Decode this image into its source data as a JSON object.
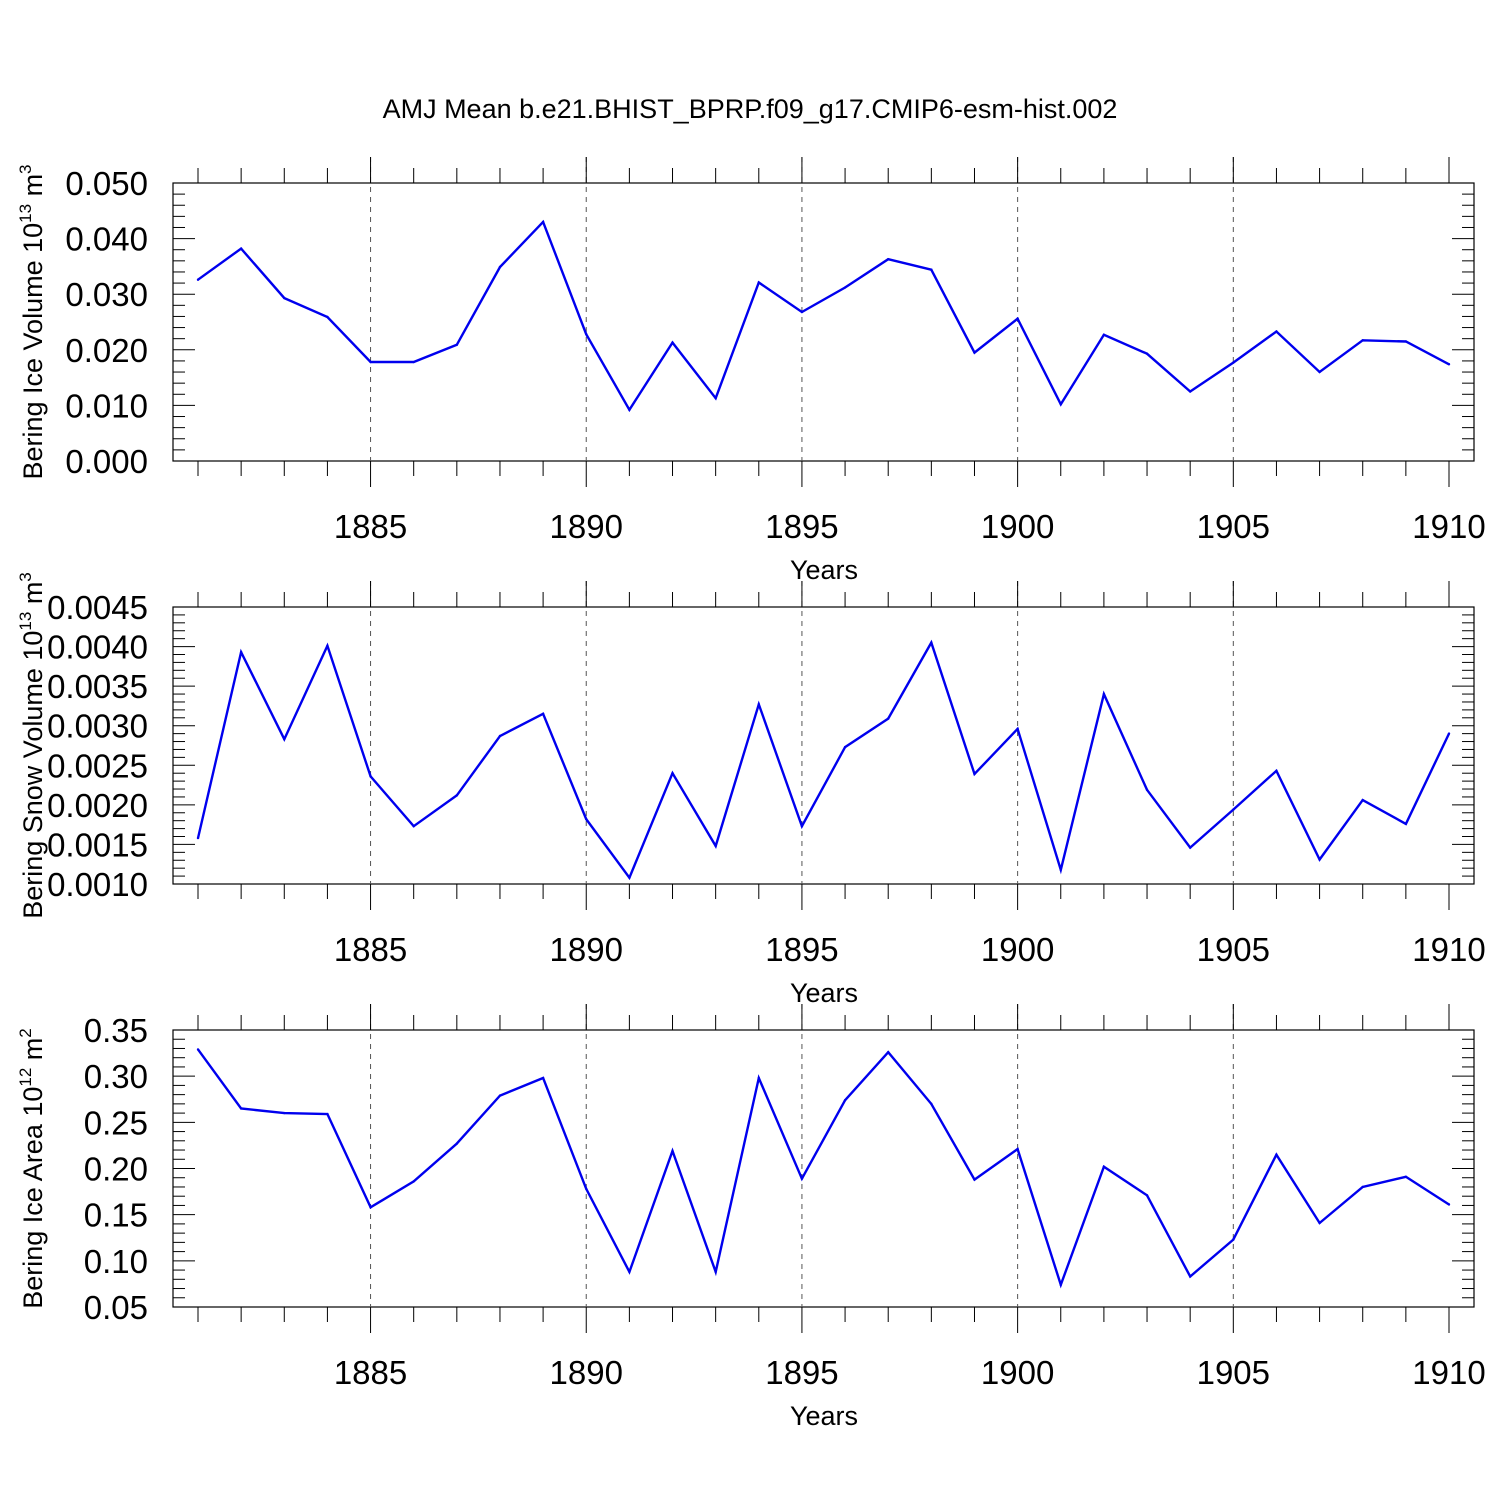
{
  "figure_title": "AMJ Mean b.e21.BHIST_BPRP.f09_g17.CMIP6-esm-hist.002",
  "colors": {
    "series": "#0000ee",
    "axis": "#000000",
    "grid": "#555555"
  },
  "chart_data": [
    {
      "type": "line",
      "ylabel": {
        "prefix": "Bering Ice Volume 10",
        "exp": "13",
        "mid": " m",
        "unit_exp": "3"
      },
      "xlabel": "Years",
      "xlim": [
        1881,
        1910
      ],
      "ylim": [
        0.0,
        0.05
      ],
      "y_ticks": [
        {
          "value": 0.0,
          "label": "0.000"
        },
        {
          "value": 0.01,
          "label": "0.010"
        },
        {
          "value": 0.02,
          "label": "0.020"
        },
        {
          "value": 0.03,
          "label": "0.030"
        },
        {
          "value": 0.04,
          "label": "0.040"
        },
        {
          "value": 0.05,
          "label": "0.050"
        }
      ],
      "x_ticks": [
        {
          "value": 1885,
          "label": "1885"
        },
        {
          "value": 1890,
          "label": "1890"
        },
        {
          "value": 1895,
          "label": "1895"
        },
        {
          "value": 1900,
          "label": "1900"
        },
        {
          "value": 1905,
          "label": "1905"
        },
        {
          "value": 1910,
          "label": "1910"
        }
      ],
      "grid_x": [
        1885,
        1890,
        1895,
        1900,
        1905
      ],
      "series": [
        {
          "name": "Bering Ice Volume",
          "x": [
            1881,
            1882,
            1883,
            1884,
            1885,
            1886,
            1887,
            1888,
            1889,
            1890,
            1891,
            1892,
            1893,
            1894,
            1895,
            1896,
            1897,
            1898,
            1899,
            1900,
            1901,
            1902,
            1903,
            1904,
            1905,
            1906,
            1907,
            1908,
            1909,
            1910
          ],
          "values": [
            0.0326,
            0.0382,
            0.0293,
            0.0259,
            0.0178,
            0.0178,
            0.0209,
            0.0349,
            0.043,
            0.0228,
            0.0092,
            0.0213,
            0.0113,
            0.0321,
            0.0268,
            0.0312,
            0.0363,
            0.0344,
            0.0195,
            0.0256,
            0.0102,
            0.0227,
            0.0193,
            0.0125,
            0.0177,
            0.0233,
            0.016,
            0.0217,
            0.0215,
            0.0174
          ]
        }
      ]
    },
    {
      "type": "line",
      "ylabel": {
        "prefix": "Bering Snow Volume 10",
        "exp": "13",
        "mid": " m",
        "unit_exp": "3"
      },
      "xlabel": "Years",
      "xlim": [
        1881,
        1910
      ],
      "ylim": [
        0.001,
        0.0045
      ],
      "y_ticks": [
        {
          "value": 0.001,
          "label": "0.0010"
        },
        {
          "value": 0.0015,
          "label": "0.0015"
        },
        {
          "value": 0.002,
          "label": "0.0020"
        },
        {
          "value": 0.0025,
          "label": "0.0025"
        },
        {
          "value": 0.003,
          "label": "0.0030"
        },
        {
          "value": 0.0035,
          "label": "0.0035"
        },
        {
          "value": 0.004,
          "label": "0.0040"
        },
        {
          "value": 0.0045,
          "label": "0.0045"
        }
      ],
      "x_ticks": [
        {
          "value": 1885,
          "label": "1885"
        },
        {
          "value": 1890,
          "label": "1890"
        },
        {
          "value": 1895,
          "label": "1895"
        },
        {
          "value": 1900,
          "label": "1900"
        },
        {
          "value": 1905,
          "label": "1905"
        },
        {
          "value": 1910,
          "label": "1910"
        }
      ],
      "grid_x": [
        1885,
        1890,
        1895,
        1900,
        1905
      ],
      "series": [
        {
          "name": "Bering Snow Volume",
          "x": [
            1881,
            1882,
            1883,
            1884,
            1885,
            1886,
            1887,
            1888,
            1889,
            1890,
            1891,
            1892,
            1893,
            1894,
            1895,
            1896,
            1897,
            1898,
            1899,
            1900,
            1901,
            1902,
            1903,
            1904,
            1905,
            1906,
            1907,
            1908,
            1909,
            1910
          ],
          "values": [
            0.00158,
            0.00393,
            0.00283,
            0.00401,
            0.00236,
            0.00173,
            0.00212,
            0.00287,
            0.00315,
            0.00182,
            0.00108,
            0.0024,
            0.00148,
            0.00327,
            0.00173,
            0.00273,
            0.00309,
            0.00405,
            0.00239,
            0.00296,
            0.00118,
            0.0034,
            0.00219,
            0.00146,
            0.00194,
            0.00243,
            0.00131,
            0.00206,
            0.00176,
            0.0029
          ]
        }
      ]
    },
    {
      "type": "line",
      "ylabel": {
        "prefix": "Bering Ice Area 10",
        "exp": "12",
        "mid": " m",
        "unit_exp": "2"
      },
      "xlabel": "Years",
      "xlim": [
        1881,
        1910
      ],
      "ylim": [
        0.05,
        0.35
      ],
      "y_ticks": [
        {
          "value": 0.05,
          "label": "0.05"
        },
        {
          "value": 0.1,
          "label": "0.10"
        },
        {
          "value": 0.15,
          "label": "0.15"
        },
        {
          "value": 0.2,
          "label": "0.20"
        },
        {
          "value": 0.25,
          "label": "0.25"
        },
        {
          "value": 0.3,
          "label": "0.30"
        },
        {
          "value": 0.35,
          "label": "0.35"
        }
      ],
      "x_ticks": [
        {
          "value": 1885,
          "label": "1885"
        },
        {
          "value": 1890,
          "label": "1890"
        },
        {
          "value": 1895,
          "label": "1895"
        },
        {
          "value": 1900,
          "label": "1900"
        },
        {
          "value": 1905,
          "label": "1905"
        },
        {
          "value": 1910,
          "label": "1910"
        }
      ],
      "grid_x": [
        1885,
        1890,
        1895,
        1900,
        1905
      ],
      "series": [
        {
          "name": "Bering Ice Area",
          "x": [
            1881,
            1882,
            1883,
            1884,
            1885,
            1886,
            1887,
            1888,
            1889,
            1890,
            1891,
            1892,
            1893,
            1894,
            1895,
            1896,
            1897,
            1898,
            1899,
            1900,
            1901,
            1902,
            1903,
            1904,
            1905,
            1906,
            1907,
            1908,
            1909,
            1910
          ],
          "values": [
            0.329,
            0.265,
            0.26,
            0.259,
            0.158,
            0.186,
            0.227,
            0.279,
            0.298,
            0.178,
            0.088,
            0.219,
            0.088,
            0.298,
            0.189,
            0.274,
            0.326,
            0.27,
            0.188,
            0.221,
            0.074,
            0.202,
            0.171,
            0.083,
            0.123,
            0.215,
            0.141,
            0.18,
            0.191,
            0.161
          ]
        }
      ]
    }
  ]
}
